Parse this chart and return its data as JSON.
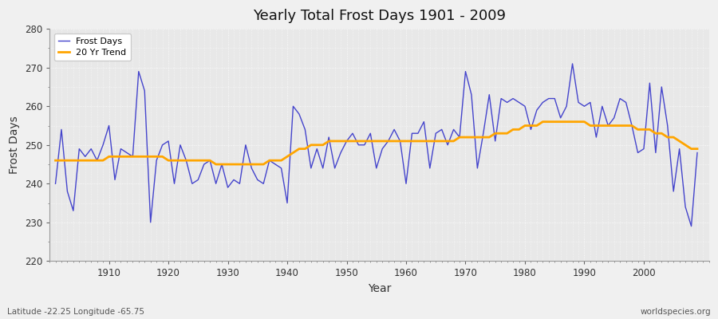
{
  "title": "Yearly Total Frost Days 1901 - 2009",
  "xlabel": "Year",
  "ylabel": "Frost Days",
  "footnote_left": "Latitude -22.25 Longitude -65.75",
  "footnote_right": "worldspecies.org",
  "ylim": [
    220,
    280
  ],
  "yticks": [
    220,
    230,
    240,
    250,
    260,
    270,
    280
  ],
  "bg_color": "#f0f0f0",
  "plot_bg_color": "#e8e8e8",
  "line_color": "#4444cc",
  "trend_color": "#ffa500",
  "legend_labels": [
    "Frost Days",
    "20 Yr Trend"
  ],
  "years": [
    1901,
    1902,
    1903,
    1904,
    1905,
    1906,
    1907,
    1908,
    1909,
    1910,
    1911,
    1912,
    1913,
    1914,
    1915,
    1916,
    1917,
    1918,
    1919,
    1920,
    1921,
    1922,
    1923,
    1924,
    1925,
    1926,
    1927,
    1928,
    1929,
    1930,
    1931,
    1932,
    1933,
    1934,
    1935,
    1936,
    1937,
    1938,
    1939,
    1940,
    1941,
    1942,
    1943,
    1944,
    1945,
    1946,
    1947,
    1948,
    1949,
    1950,
    1951,
    1952,
    1953,
    1954,
    1955,
    1956,
    1957,
    1958,
    1959,
    1960,
    1961,
    1962,
    1963,
    1964,
    1965,
    1966,
    1967,
    1968,
    1969,
    1970,
    1971,
    1972,
    1973,
    1974,
    1975,
    1976,
    1977,
    1978,
    1979,
    1980,
    1981,
    1982,
    1983,
    1984,
    1985,
    1986,
    1987,
    1988,
    1989,
    1990,
    1991,
    1992,
    1993,
    1994,
    1995,
    1996,
    1997,
    1998,
    1999,
    2000,
    2001,
    2002,
    2003,
    2004,
    2005,
    2006,
    2007,
    2008,
    2009
  ],
  "frost_days": [
    240,
    254,
    238,
    233,
    249,
    247,
    249,
    246,
    250,
    255,
    241,
    249,
    248,
    247,
    269,
    264,
    230,
    246,
    250,
    251,
    240,
    250,
    246,
    240,
    241,
    245,
    246,
    240,
    245,
    239,
    241,
    240,
    250,
    244,
    241,
    240,
    246,
    245,
    244,
    235,
    260,
    258,
    254,
    244,
    249,
    244,
    252,
    244,
    248,
    251,
    253,
    250,
    250,
    253,
    244,
    249,
    251,
    254,
    251,
    240,
    253,
    253,
    256,
    244,
    253,
    254,
    250,
    254,
    252,
    269,
    263,
    244,
    253,
    263,
    251,
    262,
    261,
    262,
    261,
    260,
    254,
    259,
    261,
    262,
    262,
    257,
    260,
    271,
    261,
    260,
    261,
    252,
    260,
    255,
    257,
    262,
    261,
    255,
    248,
    249,
    266,
    248,
    265,
    255,
    238,
    249,
    234,
    229,
    248
  ],
  "trend": [
    246,
    246,
    246,
    246,
    246,
    246,
    246,
    246,
    246,
    247,
    247,
    247,
    247,
    247,
    247,
    247,
    247,
    247,
    247,
    246,
    246,
    246,
    246,
    246,
    246,
    246,
    246,
    245,
    245,
    245,
    245,
    245,
    245,
    245,
    245,
    245,
    246,
    246,
    246,
    247,
    248,
    249,
    249,
    250,
    250,
    250,
    251,
    251,
    251,
    251,
    251,
    251,
    251,
    251,
    251,
    251,
    251,
    251,
    251,
    251,
    251,
    251,
    251,
    251,
    251,
    251,
    251,
    251,
    252,
    252,
    252,
    252,
    252,
    252,
    253,
    253,
    253,
    254,
    254,
    255,
    255,
    255,
    256,
    256,
    256,
    256,
    256,
    256,
    256,
    256,
    255,
    255,
    255,
    255,
    255,
    255,
    255,
    255,
    254,
    254,
    254,
    253,
    253,
    252,
    252,
    251,
    250,
    249,
    249
  ]
}
